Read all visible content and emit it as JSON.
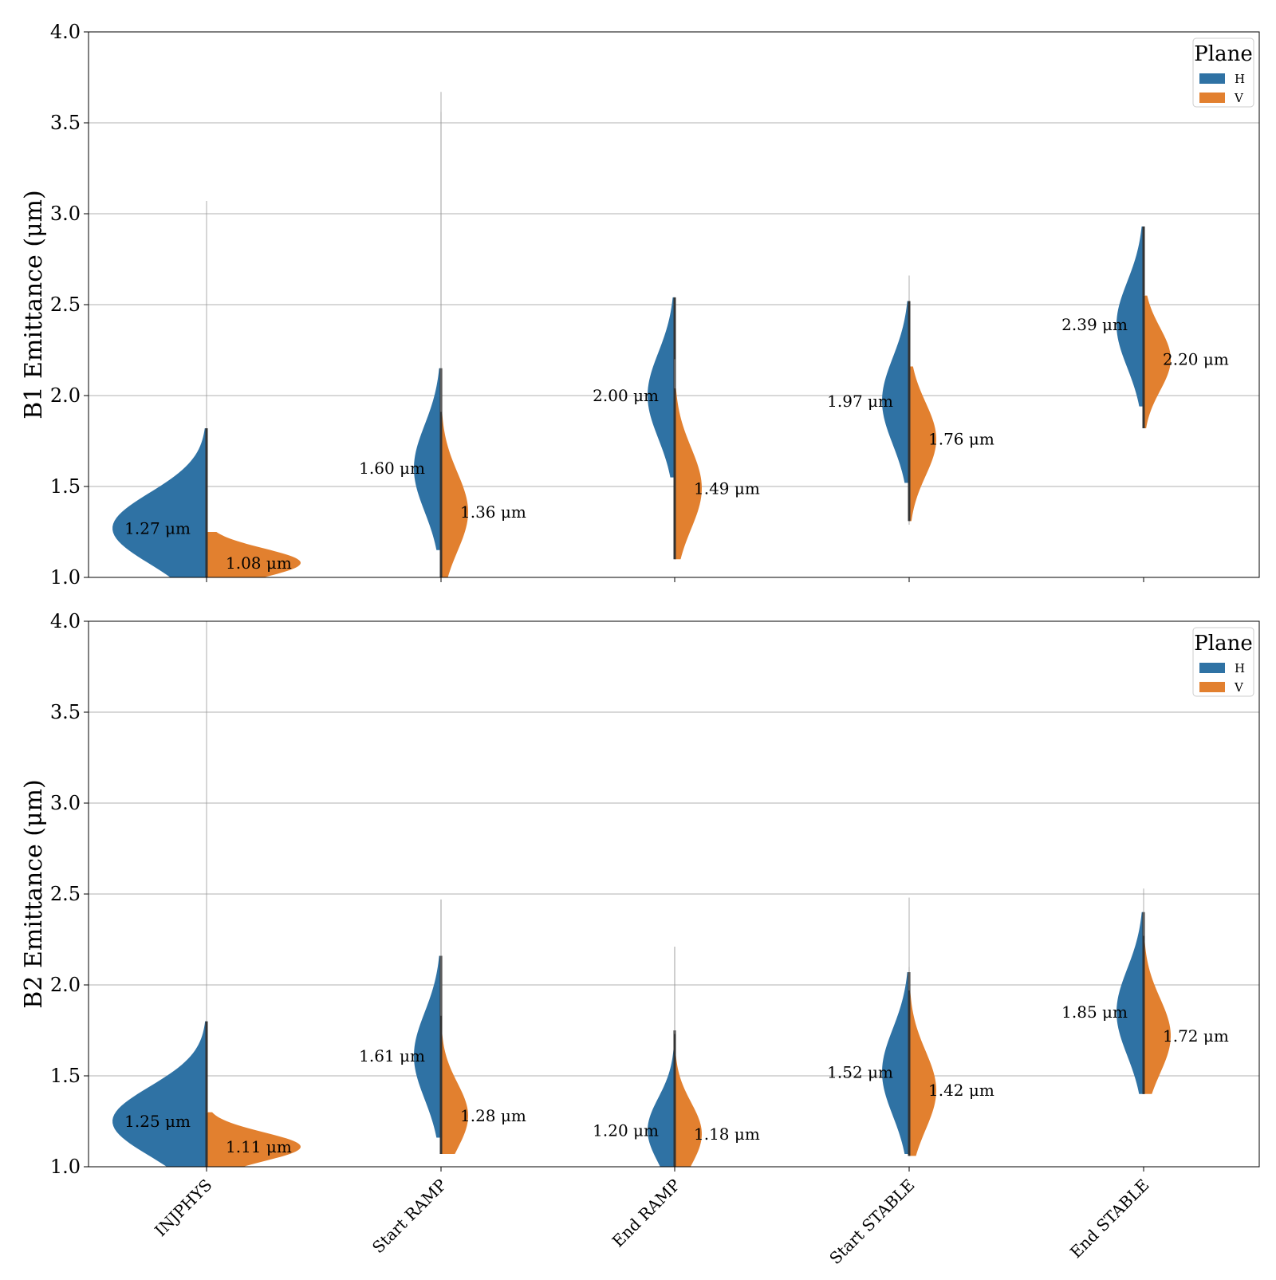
{
  "colors": {
    "H": "#2f72a4",
    "V": "#e2802f",
    "grid": "#b0b0b0",
    "axis": "#000000"
  },
  "chart_data": [
    {
      "type": "violin",
      "ylabel": "B1 Emittance (μm)",
      "ylim": [
        1.0,
        4.0
      ],
      "yticks": [
        "1.0",
        "1.5",
        "2.0",
        "2.5",
        "3.0",
        "3.5",
        "4.0"
      ],
      "grid": true,
      "legend": {
        "title": "Plane",
        "entries": [
          "H",
          "V"
        ],
        "placement": "top-right"
      },
      "categories": [
        "INJPHYS",
        "Start RAMP",
        "End RAMP",
        "Start STABLE",
        "End STABLE"
      ],
      "series": [
        {
          "name": "H",
          "medians": [
            1.27,
            1.6,
            2.0,
            1.97,
            2.39
          ],
          "ranges": [
            [
              1.0,
              3.07
            ],
            [
              1.0,
              3.67
            ],
            [
              1.22,
              2.54
            ],
            [
              1.4,
              2.66
            ],
            [
              1.85,
              2.93
            ]
          ]
        },
        {
          "name": "V",
          "medians": [
            1.08,
            1.36,
            1.49,
            1.76,
            2.2
          ],
          "ranges": [
            [
              1.0,
              1.25
            ],
            [
              1.0,
              3.56
            ],
            [
              1.1,
              2.2
            ],
            [
              1.29,
              2.16
            ],
            [
              1.82,
              2.55
            ]
          ]
        }
      ],
      "annotations": {
        "H": [
          "1.27 μm",
          "1.60 μm",
          "2.00 μm",
          "1.97 μm",
          "2.39 μm"
        ],
        "V": [
          "1.08 μm",
          "1.36 μm",
          "1.49 μm",
          "1.76 μm",
          "2.20 μm"
        ]
      }
    },
    {
      "type": "violin",
      "ylabel": "B2 Emittance (μm)",
      "ylim": [
        1.0,
        4.0
      ],
      "yticks": [
        "1.0",
        "1.5",
        "2.0",
        "2.5",
        "3.0",
        "3.5",
        "4.0"
      ],
      "grid": true,
      "legend": {
        "title": "Plane",
        "entries": [
          "H",
          "V"
        ],
        "placement": "top-right"
      },
      "categories": [
        "INJPHYS",
        "Start RAMP",
        "End RAMP",
        "Start STABLE",
        "End STABLE"
      ],
      "xticklabels": [
        "INJPHYS",
        "Start RAMP",
        "End RAMP",
        "Start STABLE",
        "End STABLE"
      ],
      "series": [
        {
          "name": "H",
          "medians": [
            1.25,
            1.61,
            1.2,
            1.52,
            1.85
          ],
          "ranges": [
            [
              1.0,
              4.0
            ],
            [
              1.08,
              2.47
            ],
            [
              1.0,
              2.21
            ],
            [
              1.06,
              2.48
            ],
            [
              1.4,
              2.53
            ]
          ]
        },
        {
          "name": "V",
          "medians": [
            1.11,
            1.28,
            1.18,
            1.42,
            1.72
          ],
          "ranges": [
            [
              1.0,
              1.3
            ],
            [
              1.07,
              2.47
            ],
            [
              1.0,
              2.21
            ],
            [
              1.06,
              2.1
            ],
            [
              1.4,
              2.4
            ]
          ]
        }
      ],
      "annotations": {
        "H": [
          "1.25 μm",
          "1.61 μm",
          "1.20 μm",
          "1.52 μm",
          "1.85 μm"
        ],
        "V": [
          "1.11 μm",
          "1.28 μm",
          "1.18 μm",
          "1.42 μm",
          "1.72 μm"
        ]
      }
    }
  ]
}
